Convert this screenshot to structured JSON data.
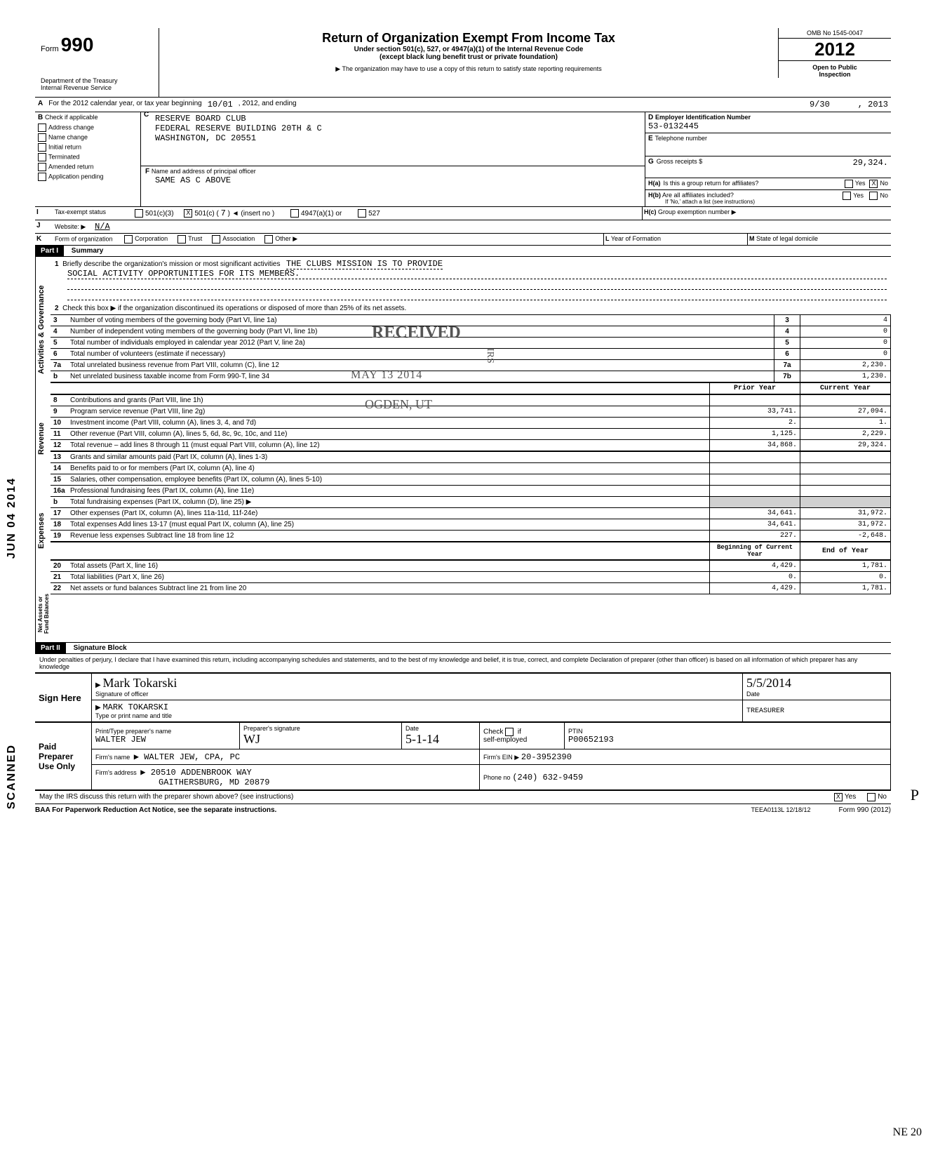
{
  "form": {
    "form_label": "Form",
    "form_number": "990",
    "dept": "Department of the Treasury",
    "irs": "Internal Revenue Service",
    "title": "Return of Organization Exempt From Income Tax",
    "subtitle1": "Under section 501(c), 527, or 4947(a)(1) of the Internal Revenue Code",
    "subtitle2": "(except black lung benefit trust or private foundation)",
    "note": "▶ The organization may have to use a copy of this return to satisfy state reporting requirements",
    "omb": "OMB No  1545-0047",
    "year": "2012",
    "open": "Open to Public",
    "inspection": "Inspection"
  },
  "sectionA": {
    "label_A": "A",
    "text": "For the 2012 calendar year, or tax year beginning",
    "begin": "10/01",
    "mid": ", 2012, and ending",
    "end_m": "9/30",
    "end_y": ", 2013"
  },
  "sectionB": {
    "label_B": "B",
    "check_label": "Check if applicable",
    "items": [
      "Address change",
      "Name change",
      "Initial return",
      "Terminated",
      "Amended return",
      "Application pending"
    ],
    "label_C": "C",
    "name1": "RESERVE BOARD CLUB",
    "name2": "FEDERAL RESERVE BUILDING 20TH & C",
    "name3": "WASHINGTON, DC 20551",
    "label_D": "D",
    "d_label": "Employer Identification Number",
    "ein": "53-0132445",
    "label_E": "E",
    "e_label": "Telephone number",
    "label_F": "F",
    "f_label": "Name and address of principal officer",
    "f_value": "SAME AS C ABOVE",
    "label_G": "G",
    "g_label": "Gross receipts $",
    "g_value": "29,324.",
    "ha_label": "H(a)",
    "ha_text": "Is this a group return for affiliates?",
    "ha_yes": "Yes",
    "ha_no": "No",
    "hb_label": "H(b)",
    "hb_text": "Are all affiliates included?",
    "hb_note": "If 'No,' attach a list (see instructions)",
    "hc_label": "H(c)",
    "hc_text": "Group exemption number ▶"
  },
  "taxStatus": {
    "label_I": "I",
    "text": "Tax-exempt status",
    "opt1": "501(c)(3)",
    "opt2": "501(c) (",
    "opt2_num": "7",
    "opt2_tail": ") ◄  (insert no )",
    "opt3": "4947(a)(1) or",
    "opt4": "527",
    "label_J": "J",
    "j_text": "Website: ▶",
    "j_val": "N/A",
    "label_K": "K",
    "k_text": "Form of organization",
    "k_opts": [
      "Corporation",
      "Trust",
      "Association",
      "Other ▶"
    ],
    "label_L": "L",
    "l_text": "Year of Formation",
    "label_M": "M",
    "m_text": "State of legal domicile"
  },
  "part1": {
    "hdr": "Part I",
    "title": "Summary",
    "line1_num": "1",
    "line1_text": "Briefly describe the organization's mission or most significant activities",
    "line1_val": "THE CLUBS MISSION IS TO PROVIDE",
    "line1_val2": "SOCIAL ACTIVITY OPPORTUNITIES FOR ITS MEMBERS.",
    "line2_num": "2",
    "line2_text": "Check this box ▶       if the organization discontinued its operations or disposed of more than 25% of its net assets.",
    "rows_gov": [
      {
        "n": "3",
        "t": "Number of voting members of the governing body (Part VI, line 1a)",
        "b": "3",
        "v": "4"
      },
      {
        "n": "4",
        "t": "Number of independent voting members of the governing body (Part VI, line 1b)",
        "b": "4",
        "v": "0"
      },
      {
        "n": "5",
        "t": "Total number of individuals employed in calendar year 2012 (Part V, line 2a)",
        "b": "5",
        "v": "0"
      },
      {
        "n": "6",
        "t": "Total number of volunteers (estimate if necessary)",
        "b": "6",
        "v": "0"
      },
      {
        "n": "7a",
        "t": "Total unrelated business revenue from Part VIII, column (C), line 12",
        "b": "7a",
        "v": "2,230."
      },
      {
        "n": "b",
        "t": "Net unrelated business taxable income from Form 990-T, line 34",
        "b": "7b",
        "v": "1,230."
      }
    ],
    "col_prior": "Prior Year",
    "col_current": "Current Year",
    "rev_rows": [
      {
        "n": "8",
        "t": "Contributions and grants (Part VIII, line 1h)",
        "p": "",
        "c": ""
      },
      {
        "n": "9",
        "t": "Program service revenue (Part VIII, line 2g)",
        "p": "33,741.",
        "c": "27,094."
      },
      {
        "n": "10",
        "t": "Investment income (Part VIII, column (A), lines 3, 4, and 7d)",
        "p": "2.",
        "c": "1."
      },
      {
        "n": "11",
        "t": "Other revenue (Part VIII, column (A), lines 5, 6d, 8c, 9c, 10c, and 11e)",
        "p": "1,125.",
        "c": "2,229."
      },
      {
        "n": "12",
        "t": "Total revenue – add lines 8 through 11 (must equal Part VIII, column (A), line 12)",
        "p": "34,868.",
        "c": "29,324."
      }
    ],
    "exp_rows": [
      {
        "n": "13",
        "t": "Grants and similar amounts paid (Part IX, column (A), lines 1-3)",
        "p": "",
        "c": ""
      },
      {
        "n": "14",
        "t": "Benefits paid to or for members (Part IX, column (A), line 4)",
        "p": "",
        "c": ""
      },
      {
        "n": "15",
        "t": "Salaries, other compensation, employee benefits (Part IX, column (A), lines 5-10)",
        "p": "",
        "c": ""
      },
      {
        "n": "16a",
        "t": "Professional fundraising fees (Part IX, column (A), line 11e)",
        "p": "",
        "c": ""
      },
      {
        "n": "b",
        "t": "Total fundraising expenses (Part IX, column (D), line 25) ▶",
        "p": "",
        "c": "",
        "grey": true
      },
      {
        "n": "17",
        "t": "Other expenses (Part IX, column (A), lines 11a-11d, 11f-24e)",
        "p": "34,641.",
        "c": "31,972."
      },
      {
        "n": "18",
        "t": "Total expenses  Add lines 13-17 (must equal Part IX, column (A), line 25)",
        "p": "34,641.",
        "c": "31,972."
      },
      {
        "n": "19",
        "t": "Revenue less expenses  Subtract line 18 from line 12",
        "p": "227.",
        "c": "-2,648."
      }
    ],
    "col_begin": "Beginning of Current Year",
    "col_end": "End of Year",
    "net_rows": [
      {
        "n": "20",
        "t": "Total assets (Part X, line 16)",
        "p": "4,429.",
        "c": "1,781."
      },
      {
        "n": "21",
        "t": "Total liabilities (Part X, line 26)",
        "p": "0.",
        "c": "0."
      },
      {
        "n": "22",
        "t": "Net assets or fund balances  Subtract line 21 from line 20",
        "p": "4,429.",
        "c": "1,781."
      }
    ],
    "vert_gov": "Activities & Governance",
    "vert_rev": "Revenue",
    "vert_exp": "Expenses",
    "vert_net": "Net Assets or\nFund Balances"
  },
  "part2": {
    "hdr": "Part II",
    "title": "Signature Block",
    "perjury": "Under penalties of perjury, I declare that I have examined this return, including accompanying schedules and statements, and to the best of my knowledge and belief, it is true, correct, and complete  Declaration of preparer (other than officer) is based on all information of which preparer has any knowledge",
    "sign_here": "Sign Here",
    "sig_officer": "Signature of officer",
    "sig_name_scribble": "Mark Tokarski",
    "date_lbl": "Date",
    "date_val": "5/5/2014",
    "name_typed": "MARK TOKARSKI",
    "name_sub": "Type or print name and title",
    "title_val": "TREASURER",
    "paid_hdr": "Paid Preparer Use Only",
    "prep_name_lbl": "Print/Type preparer's name",
    "prep_name": "WALTER JEW",
    "prep_sig_lbl": "Preparer's signature",
    "prep_date": "5-1-14",
    "check_lbl": "Check",
    "if_lbl": "if",
    "self_emp": "self-employed",
    "ptin_lbl": "PTIN",
    "ptin": "P00652193",
    "firm_name_lbl": "Firm's name",
    "firm_name": "▶ WALTER JEW, CPA, PC",
    "firm_addr_lbl": "Firm's address",
    "firm_addr1": "▶ 20510 ADDENBROOK WAY",
    "firm_addr2": "GAITHERSBURG, MD 20879",
    "firm_ein_lbl": "Firm's EIN ▶",
    "firm_ein": "20-3952390",
    "phone_lbl": "Phone no",
    "phone": "(240) 632-9459",
    "discuss": "May the IRS discuss this return with the preparer shown above? (see instructions)",
    "yes": "Yes",
    "no": "No"
  },
  "footer": {
    "baa": "BAA  For Paperwork Reduction Act Notice, see the separate instructions.",
    "code": "TEEA0113L  12/18/12",
    "form": "Form 990 (2012)"
  },
  "stamps": {
    "received": "RECEIVED",
    "date": "MAY 13 2014",
    "ogden": "OGDEN, UT",
    "irs": "IRS",
    "scanned": "SCANNED",
    "jun": "JUN 04 2014",
    "ne20": "NE 20",
    "p": "P"
  }
}
